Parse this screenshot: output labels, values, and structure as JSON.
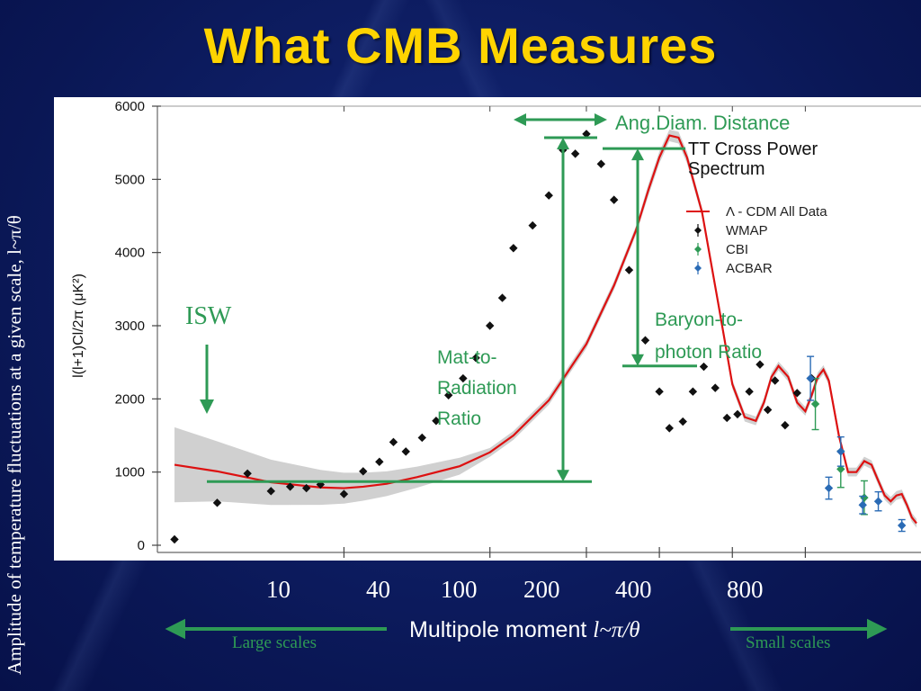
{
  "slide": {
    "title": "What CMB Measures",
    "side_label": "Amplitude of temperature fluctuations at a given scale, l~π/θ",
    "bottom_ticks": [
      "10",
      "40",
      "100",
      "200",
      "400",
      "800"
    ],
    "x_label_prefix": "Multipole moment ",
    "x_label_var": "l~π/θ",
    "left_scale_label": "Large scales",
    "right_scale_label": "Small scales",
    "colors": {
      "title": "#ffd400",
      "annotation_green": "#2e9a55",
      "model_red": "#dd1111",
      "background": "#0b1a5e"
    }
  },
  "chart_data": {
    "type": "scatter",
    "title": "TT Cross Power Spectrum",
    "ylabel": "l(l+1)Cl/2π (μK²)",
    "ylim": [
      0,
      6000
    ],
    "yticks": [
      "0",
      "1000",
      "2000",
      "3000",
      "4000",
      "5000",
      "6000"
    ],
    "x_scale": "log",
    "xlim": [
      1.7,
      2400
    ],
    "grid": false,
    "legend_position": "top-right",
    "legend": [
      "Λ - CDM All Data",
      "WMAP",
      "CBI",
      "ACBAR"
    ],
    "annotations": {
      "isw": "ISW",
      "ang_diam": "Ang.Diam. Distance",
      "mat_rad": [
        "Mat-to-",
        "Radiation",
        "Ratio"
      ],
      "baryon": [
        "Baryon-to-",
        "photon Ratio"
      ]
    },
    "series": [
      {
        "name": "Λ - CDM All Data",
        "type": "line",
        "color": "#dd1111",
        "x": [
          2,
          3,
          5,
          8,
          10,
          12,
          15,
          20,
          30,
          40,
          50,
          70,
          100,
          130,
          160,
          180,
          200,
          220,
          240,
          260,
          300,
          350,
          400,
          450,
          500,
          540,
          580,
          620,
          680,
          740,
          800,
          850,
          900,
          950,
          1000,
          1100,
          1200,
          1300,
          1400,
          1500,
          1600,
          1700,
          1800,
          1900,
          2000,
          2100,
          2200,
          2300
        ],
        "y": [
          1100,
          1010,
          860,
          790,
          780,
          800,
          840,
          930,
          1080,
          1270,
          1500,
          1980,
          2750,
          3550,
          4300,
          4850,
          5300,
          5600,
          5570,
          5300,
          4550,
          3300,
          2200,
          1750,
          1700,
          1950,
          2300,
          2450,
          2300,
          1950,
          1830,
          2050,
          2300,
          2400,
          2250,
          1500,
          1000,
          1000,
          1150,
          1100,
          880,
          680,
          600,
          680,
          700,
          550,
          380,
          300
        ]
      },
      {
        "name": "WMAP",
        "type": "scatter",
        "color": "#111111",
        "x": [
          2,
          3,
          4,
          5,
          6,
          7,
          8,
          10,
          12,
          14,
          16,
          18,
          21,
          24,
          27,
          31,
          35,
          40,
          45,
          50,
          60,
          70,
          80,
          90,
          100,
          115,
          130,
          150,
          175,
          200,
          220,
          250,
          275,
          305,
          340,
          380,
          420,
          470,
          520,
          560,
          600,
          660,
          740,
          850
        ],
        "y": [
          80,
          580,
          980,
          740,
          800,
          780,
          830,
          700,
          1010,
          1140,
          1410,
          1280,
          1470,
          1700,
          2050,
          2280,
          2560,
          3000,
          3380,
          4060,
          4370,
          4780,
          5400,
          5350,
          5620,
          5210,
          4720,
          3760,
          2800,
          2100,
          1600,
          1690,
          2100,
          2440,
          2150,
          1740,
          1790,
          2100,
          2470,
          1850,
          2250,
          1640,
          2080,
          2280
        ],
        "err": [
          0,
          0,
          0,
          0,
          0,
          0,
          0,
          0,
          0,
          0,
          0,
          0,
          0,
          0,
          0,
          0,
          0,
          0,
          0,
          0,
          0,
          0,
          0,
          0,
          0,
          0,
          0,
          0,
          0,
          0,
          0,
          0,
          0,
          0,
          0,
          0,
          0,
          0,
          0,
          0,
          0,
          0,
          0,
          0
        ]
      },
      {
        "name": "CBI",
        "type": "scatter",
        "color": "#2e9a55",
        "x": [
          880,
          1120,
          1400
        ],
        "y": [
          1930,
          1040,
          650
        ],
        "err": [
          350,
          250,
          230
        ]
      },
      {
        "name": "ACBAR",
        "type": "scatter",
        "color": "#2a6bb5",
        "x": [
          840,
          1000,
          1120,
          1380,
          1600,
          2000
        ],
        "y": [
          2280,
          780,
          1280,
          550,
          600,
          270
        ],
        "err": [
          300,
          150,
          200,
          120,
          130,
          80
        ]
      }
    ]
  }
}
